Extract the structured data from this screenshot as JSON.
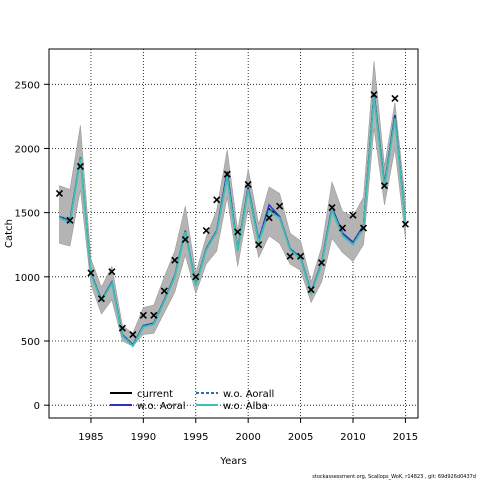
{
  "chart_data": {
    "type": "line",
    "title": "",
    "xlabel": "Years",
    "ylabel": "Catch",
    "xlim": [
      1981,
      2016.2
    ],
    "ylim": [
      -100,
      2775
    ],
    "grid": true,
    "grid_style": "dotted",
    "x_ticks": [
      1985,
      1990,
      1995,
      2000,
      2005,
      2010,
      2015
    ],
    "y_ticks": [
      0,
      500,
      1000,
      1500,
      2000,
      2500
    ],
    "legend_position": "bottom-left",
    "years": [
      1982,
      1983,
      1984,
      1985,
      1986,
      1987,
      1988,
      1989,
      1990,
      1991,
      1992,
      1993,
      1994,
      1995,
      1996,
      1997,
      1998,
      1999,
      2000,
      2001,
      2002,
      2003,
      2004,
      2005,
      2006,
      2007,
      2008,
      2009,
      2010,
      2011,
      2012,
      2013,
      2014,
      2015
    ],
    "observed": {
      "name": "observed",
      "marker": "x",
      "color": "#000000",
      "values": [
        1650,
        1440,
        1860,
        1030,
        830,
        1040,
        600,
        550,
        700,
        700,
        890,
        1130,
        1290,
        1000,
        1360,
        1600,
        1800,
        1350,
        1720,
        1250,
        1460,
        1550,
        1160,
        1160,
        900,
        1110,
        1540,
        1380,
        1480,
        1380,
        2420,
        1710,
        2390,
        1410
      ]
    },
    "ci_band": {
      "color": "#b4b4b4",
      "lower": [
        1260,
        1240,
        1680,
        940,
        710,
        820,
        500,
        460,
        550,
        560,
        720,
        880,
        1170,
        870,
        1100,
        1200,
        1620,
        1080,
        1540,
        1150,
        1320,
        1260,
        1100,
        1050,
        800,
        960,
        1300,
        1190,
        1120,
        1250,
        2160,
        1560,
        2000,
        1300
      ],
      "upper": [
        1710,
        1680,
        2180,
        1140,
        920,
        1080,
        620,
        560,
        760,
        780,
        1000,
        1200,
        1550,
        1030,
        1310,
        1520,
        1990,
        1360,
        1840,
        1410,
        1700,
        1650,
        1340,
        1280,
        960,
        1230,
        1740,
        1510,
        1470,
        1620,
        2680,
        1860,
        2360,
        1590
      ]
    },
    "series": [
      {
        "name": "current",
        "color": "#000000",
        "dash": "solid",
        "values": [
          1470,
          1440,
          1930,
          1030,
          820,
          960,
          550,
          470,
          620,
          640,
          820,
          1010,
          1360,
          940,
          1220,
          1360,
          1820,
          1210,
          1700,
          1280,
          1530,
          1470,
          1220,
          1150,
          880,
          1110,
          1540,
          1340,
          1270,
          1400,
          2430,
          1720,
          2260,
          1430
        ]
      },
      {
        "name": "w.o. Aoral",
        "color": "#2e2ec8",
        "dash": "solid",
        "values": [
          1470,
          1440,
          1930,
          1030,
          820,
          960,
          550,
          470,
          620,
          640,
          820,
          1010,
          1360,
          940,
          1220,
          1360,
          1820,
          1210,
          1700,
          1290,
          1560,
          1470,
          1220,
          1150,
          880,
          1110,
          1540,
          1340,
          1270,
          1400,
          2430,
          1720,
          2260,
          1430
        ]
      },
      {
        "name": "w.o. Aorall",
        "color": "#2a6fb0",
        "dash": "dashed",
        "values": [
          1470,
          1440,
          1930,
          1030,
          820,
          960,
          550,
          470,
          620,
          640,
          820,
          1010,
          1360,
          940,
          1220,
          1360,
          1800,
          1210,
          1690,
          1290,
          1530,
          1460,
          1220,
          1150,
          880,
          1110,
          1530,
          1330,
          1260,
          1390,
          2410,
          1720,
          2240,
          1430
        ]
      },
      {
        "name": "w.o. Alba",
        "color": "#3fbfb3",
        "dash": "solid",
        "values": [
          1460,
          1420,
          1920,
          1020,
          810,
          950,
          540,
          460,
          610,
          630,
          810,
          1000,
          1350,
          930,
          1210,
          1350,
          1780,
          1200,
          1680,
          1270,
          1510,
          1460,
          1210,
          1140,
          870,
          1100,
          1520,
          1320,
          1250,
          1380,
          2400,
          1700,
          2230,
          1420
        ]
      }
    ]
  },
  "footer": {
    "caption": "stockassessment.org, Scallops_WoK, r14823 , git: 69d926d0437d"
  }
}
